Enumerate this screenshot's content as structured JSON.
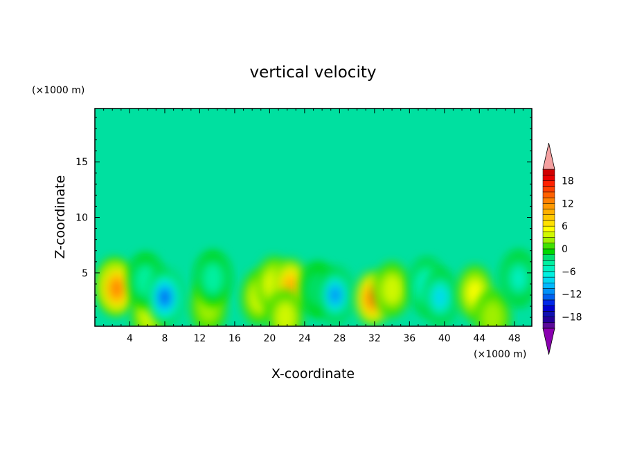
{
  "chart_data": {
    "type": "heatmap",
    "title": "vertical velocity",
    "xlabel": "X-coordinate",
    "ylabel": "Z-coordinate",
    "x_unit": "(×1000 m)",
    "y_unit": "(×1000 m)",
    "xlim": [
      0,
      50
    ],
    "ylim": [
      0.2,
      19.8
    ],
    "x_ticks": [
      4,
      8,
      12,
      16,
      20,
      24,
      28,
      32,
      36,
      40,
      44,
      48
    ],
    "y_ticks": [
      5,
      10,
      15
    ],
    "grid": false,
    "colorbar": {
      "ticks": [
        18,
        12,
        6,
        0,
        -6,
        -12,
        -18
      ],
      "tick_labels": [
        "18",
        "12",
        "6",
        "0",
        "−6",
        "−12",
        "−18"
      ],
      "range": [
        -21,
        21
      ],
      "levels": [
        -21,
        -19.5,
        -18,
        -16.5,
        -15,
        -13.5,
        -12,
        -10.5,
        -9,
        -7.5,
        -6,
        -4.5,
        -3,
        -1.5,
        0,
        1.5,
        3,
        4.5,
        6,
        7.5,
        9,
        10.5,
        12,
        13.5,
        15,
        16.5,
        18,
        19.5,
        21
      ],
      "colors": [
        "#5b0a9a",
        "#24009a",
        "#1010b0",
        "#0000d0",
        "#0028e8",
        "#0060f0",
        "#0090f8",
        "#00b8ff",
        "#00d8f0",
        "#00f0e0",
        "#00f0c0",
        "#00f0a0",
        "#00e070",
        "#00d800",
        "#40e000",
        "#a0f000",
        "#d0f800",
        "#ffff00",
        "#ffe000",
        "#ffc800",
        "#ffb000",
        "#ff9800",
        "#ff8000",
        "#ff6000",
        "#ff4000",
        "#ff2000",
        "#e80000",
        "#d00000"
      ],
      "under_color": "#8a00b0",
      "over_color": "#f4a0a0"
    },
    "background_color": "#00e0a0",
    "features": [
      {
        "x": 2.2,
        "z": 3.9,
        "w": 6
      },
      {
        "x": 2.5,
        "z": 3.6,
        "w": 12
      },
      {
        "x": 6.2,
        "z": 1.3,
        "w": 4
      },
      {
        "x": 5.8,
        "z": 4.3,
        "w": -4
      },
      {
        "x": 8.0,
        "z": 2.8,
        "w": -13
      },
      {
        "x": 13.0,
        "z": 2.0,
        "w": 2
      },
      {
        "x": 13.5,
        "z": 4.5,
        "w": -4
      },
      {
        "x": 18.8,
        "z": 2.8,
        "w": 4
      },
      {
        "x": 20.5,
        "z": 4.0,
        "w": 5
      },
      {
        "x": 22.4,
        "z": 3.8,
        "w": 10
      },
      {
        "x": 21.8,
        "z": 1.0,
        "w": 4
      },
      {
        "x": 25.5,
        "z": 3.5,
        "w": -3
      },
      {
        "x": 27.5,
        "z": 3.0,
        "w": -11
      },
      {
        "x": 31.8,
        "z": 2.7,
        "w": 12
      },
      {
        "x": 34.0,
        "z": 3.5,
        "w": 4
      },
      {
        "x": 38.0,
        "z": 3.8,
        "w": -7
      },
      {
        "x": 39.5,
        "z": 2.8,
        "w": -9
      },
      {
        "x": 43.5,
        "z": 3.2,
        "w": 5
      },
      {
        "x": 45.5,
        "z": 1.0,
        "w": 2
      },
      {
        "x": 48.5,
        "z": 4.5,
        "w": -6
      }
    ]
  }
}
